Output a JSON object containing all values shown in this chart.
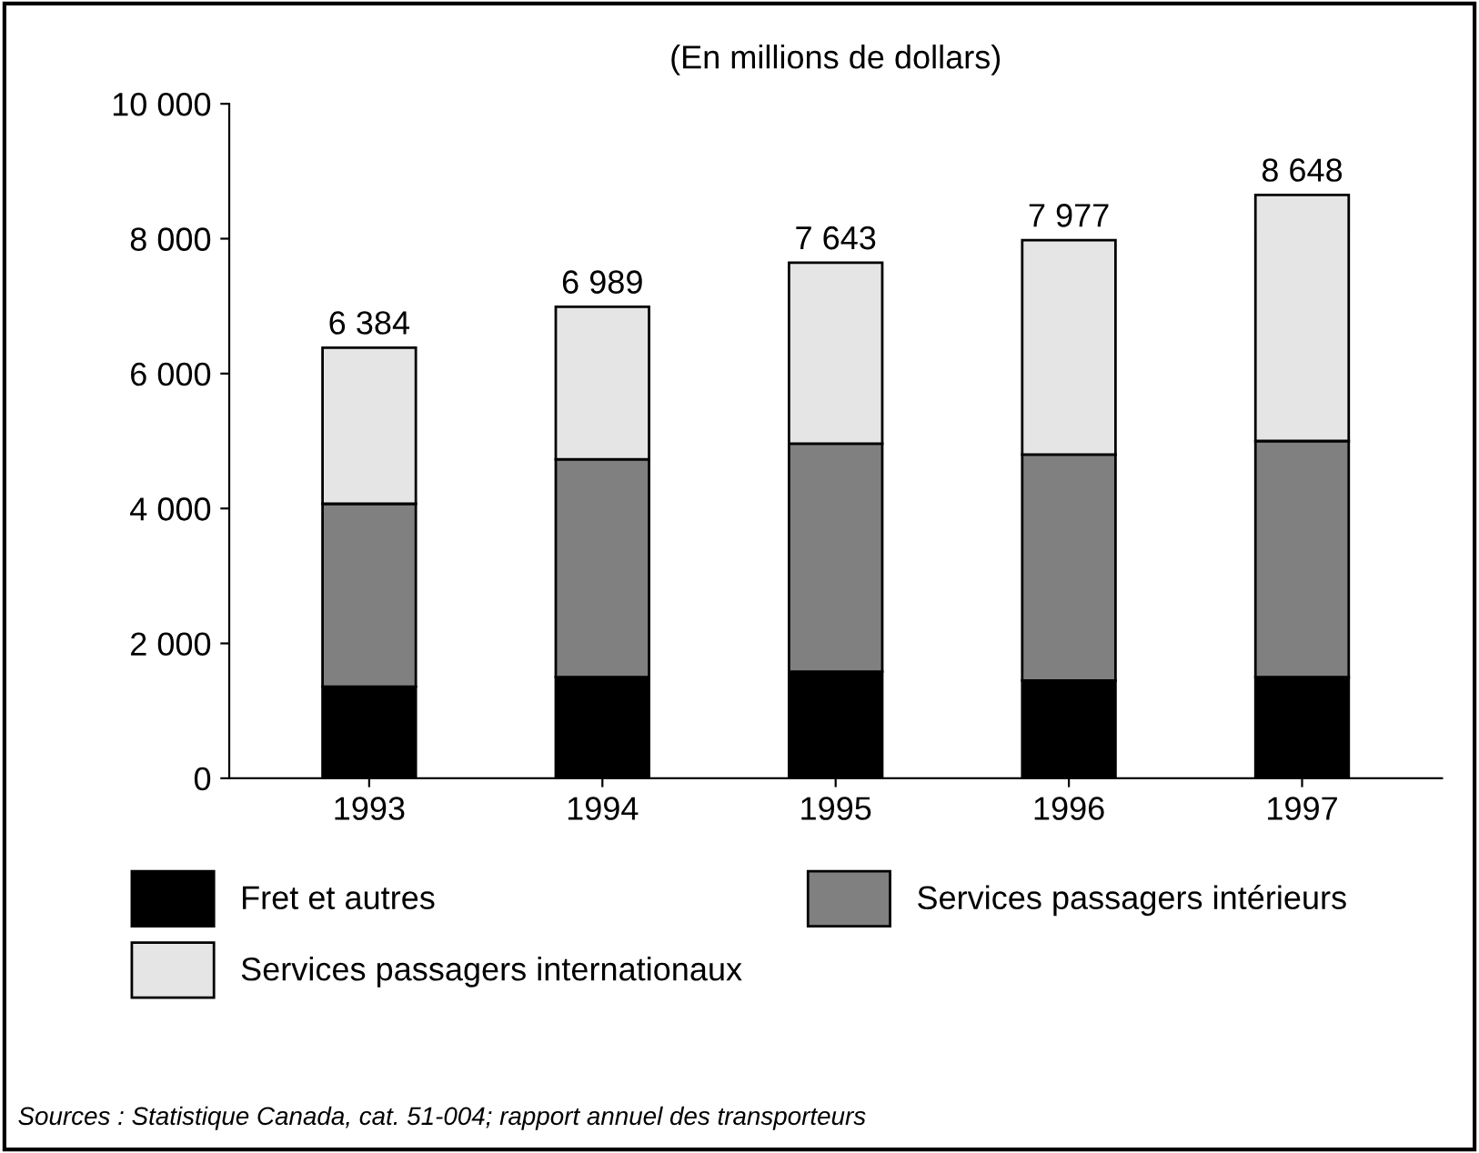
{
  "chart_data": {
    "type": "bar",
    "stacked": true,
    "subtitle": "(En millions de dollars)",
    "categories": [
      "1993",
      "1994",
      "1995",
      "1996",
      "1997"
    ],
    "series": [
      {
        "name": "Fret et autres",
        "color": "#000000",
        "values": [
          1360,
          1500,
          1580,
          1450,
          1500
        ]
      },
      {
        "name": "Services passagers intérieurs",
        "color": "#808080",
        "values": [
          2710,
          3230,
          3380,
          3350,
          3500
        ]
      },
      {
        "name": "Services passagers internationaux",
        "color": "#e5e5e5",
        "values": [
          2314,
          2259,
          2683,
          3177,
          3648
        ]
      }
    ],
    "totals": [
      "6 384",
      "6 989",
      "7 643",
      "7 977",
      "8 648"
    ],
    "ylim": [
      0,
      10000
    ],
    "yticks": [
      {
        "value": 0,
        "label": "0"
      },
      {
        "value": 2000,
        "label": "2 000"
      },
      {
        "value": 4000,
        "label": "4 000"
      },
      {
        "value": 6000,
        "label": "6 000"
      },
      {
        "value": 8000,
        "label": "8 000"
      },
      {
        "value": 10000,
        "label": "10 000"
      }
    ],
    "grid": false,
    "legend": "bottom",
    "annotations": [
      "Sources : Statistique Canada, cat. 51-004; rapport annuel des transporteurs"
    ]
  }
}
